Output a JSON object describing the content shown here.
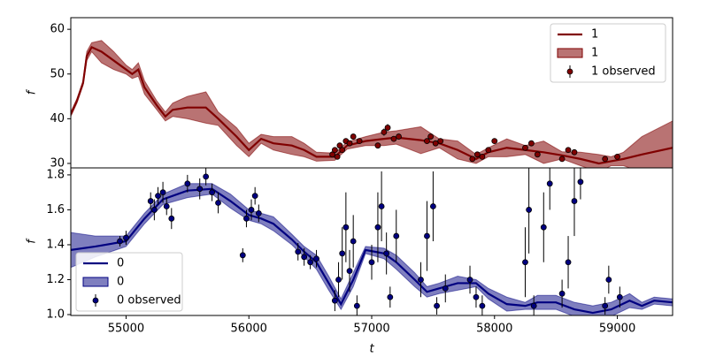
{
  "chart_data": [
    {
      "type": "line",
      "ylabel": "f",
      "legend": "upper right",
      "xlim": [
        54550,
        59450
      ],
      "ylim": [
        29,
        62.6
      ],
      "yticks": [
        30,
        40,
        50,
        60
      ],
      "series": [
        {
          "name": "1",
          "color": "#800000",
          "kind": "line",
          "x": [
            54550,
            54600,
            54650,
            54680,
            54720,
            54800,
            54900,
            55000,
            55050,
            55100,
            55150,
            55250,
            55320,
            55380,
            55500,
            55650,
            55750,
            55900,
            56000,
            56100,
            56200,
            56350,
            56450,
            56550,
            56700,
            56800,
            56950,
            57100,
            57200,
            57400,
            57550,
            57700,
            57850,
            57950,
            58100,
            58250,
            58400,
            58550,
            58700,
            58850,
            58950,
            59050,
            59200,
            59450
          ],
          "values": [
            41,
            44,
            48,
            54,
            56,
            55,
            53,
            51,
            50,
            51,
            47,
            43,
            40.5,
            42,
            42.5,
            42.5,
            40,
            36,
            33,
            35.5,
            34.5,
            34,
            33,
            31.5,
            31.5,
            34,
            35,
            35.5,
            35.8,
            35.2,
            34.5,
            33,
            31,
            32.5,
            33.5,
            33,
            32.5,
            31.8,
            31,
            30,
            30.5,
            31,
            32,
            33.5
          ]
        },
        {
          "name": "1",
          "color": "#800000",
          "kind": "band",
          "alpha": 0.55,
          "x": [
            54550,
            54600,
            54650,
            54680,
            54720,
            54800,
            54900,
            55000,
            55050,
            55100,
            55150,
            55250,
            55320,
            55380,
            55500,
            55650,
            55750,
            55900,
            56000,
            56100,
            56200,
            56350,
            56450,
            56550,
            56700,
            56800,
            56950,
            57100,
            57200,
            57400,
            57550,
            57700,
            57850,
            57950,
            58100,
            58250,
            58400,
            58550,
            58700,
            58850,
            58950,
            59050,
            59200,
            59450
          ],
          "lower": [
            40.5,
            43.5,
            47.5,
            53,
            55,
            52.5,
            51,
            50,
            49,
            49.5,
            45.5,
            42,
            39.5,
            40.5,
            40,
            39,
            38.5,
            34,
            31.5,
            34.5,
            33,
            32,
            31.5,
            30.5,
            30.7,
            33.2,
            34,
            34,
            34.3,
            32.2,
            33.5,
            31,
            30,
            31.5,
            31.5,
            32,
            30,
            31,
            29.5,
            28,
            29.5,
            29.5,
            28,
            27.5
          ],
          "upper": [
            41.5,
            44.5,
            48.5,
            55,
            57,
            57.5,
            55,
            52,
            51,
            52.5,
            48.5,
            44,
            41.5,
            43.5,
            45,
            46,
            41.5,
            38,
            34.5,
            36.5,
            36,
            36,
            34.5,
            32.5,
            32.3,
            34.8,
            36,
            37,
            37.3,
            38.2,
            35.5,
            35,
            32,
            33.5,
            35.5,
            34,
            35,
            32.6,
            32.5,
            32,
            31.5,
            32.5,
            36,
            39.5
          ]
        },
        {
          "name": "1 observed",
          "color": "#800000",
          "kind": "errorbar",
          "x": [
            56680,
            56700,
            56720,
            56740,
            56760,
            56790,
            56820,
            56850,
            56900,
            57050,
            57100,
            57130,
            57180,
            57220,
            57450,
            57480,
            57520,
            57560,
            57820,
            57860,
            57900,
            57950,
            58000,
            58250,
            58300,
            58350,
            58550,
            58600,
            58650,
            58900,
            59000
          ],
          "values": [
            32,
            33,
            31.5,
            34,
            33,
            35,
            34.5,
            36,
            35,
            34,
            37,
            38,
            35.5,
            36,
            35,
            36,
            34.5,
            35,
            31,
            32,
            31.5,
            33,
            35,
            33.5,
            34.5,
            32,
            31,
            33,
            32.5,
            31,
            31.5
          ],
          "errors": [
            0.6,
            0.6,
            0.6,
            0.6,
            0.6,
            0.6,
            0.6,
            0.6,
            0.6,
            0.6,
            0.8,
            0.8,
            0.6,
            0.6,
            0.6,
            0.6,
            0.6,
            0.6,
            0.6,
            0.6,
            0.6,
            0.6,
            0.6,
            0.6,
            0.6,
            0.6,
            0.6,
            0.6,
            0.6,
            0.6,
            0.6
          ]
        }
      ]
    },
    {
      "type": "line",
      "ylabel": "f",
      "xlabel": "t",
      "legend": "lower left",
      "xlim": [
        54550,
        59450
      ],
      "xticks": [
        55000,
        56000,
        57000,
        58000,
        59000
      ],
      "ylim": [
        0.995,
        1.84
      ],
      "yticks": [
        {
          "value": 1,
          "label": "1.0"
        },
        1.2,
        1.4,
        1.6,
        1.8
      ],
      "series": [
        {
          "name": "0",
          "color": "#000080",
          "kind": "line",
          "x": [
            54550,
            54750,
            55000,
            55150,
            55300,
            55500,
            55700,
            55850,
            56000,
            56100,
            56200,
            56350,
            56450,
            56550,
            56650,
            56750,
            56850,
            56950,
            57100,
            57200,
            57350,
            57450,
            57550,
            57700,
            57850,
            57950,
            58100,
            58250,
            58350,
            58500,
            58650,
            58800,
            58950,
            59100,
            59200,
            59300,
            59450
          ],
          "values": [
            1.37,
            1.39,
            1.42,
            1.55,
            1.66,
            1.71,
            1.72,
            1.65,
            1.57,
            1.55,
            1.52,
            1.43,
            1.36,
            1.3,
            1.18,
            1.06,
            1.2,
            1.37,
            1.35,
            1.3,
            1.2,
            1.13,
            1.15,
            1.18,
            1.18,
            1.12,
            1.06,
            1.05,
            1.07,
            1.07,
            1.03,
            1.01,
            1.03,
            1.08,
            1.05,
            1.08,
            1.07
          ]
        },
        {
          "name": "0",
          "color": "#000080",
          "kind": "band",
          "alpha": 0.5,
          "x": [
            54550,
            54750,
            55000,
            55150,
            55300,
            55500,
            55700,
            55850,
            56000,
            56100,
            56200,
            56350,
            56450,
            56550,
            56650,
            56750,
            56850,
            56950,
            57100,
            57200,
            57350,
            57450,
            57550,
            57700,
            57850,
            57950,
            58100,
            58250,
            58350,
            58500,
            58650,
            58800,
            58950,
            59100,
            59200,
            59300,
            59450
          ],
          "lower": [
            1.27,
            1.33,
            1.39,
            1.52,
            1.63,
            1.67,
            1.69,
            1.61,
            1.54,
            1.52,
            1.48,
            1.4,
            1.33,
            1.26,
            1.14,
            1.03,
            1.16,
            1.35,
            1.32,
            1.26,
            1.16,
            1.1,
            1.12,
            1.14,
            1.16,
            1.09,
            1.02,
            1.03,
            1.03,
            1.03,
            0.99,
            0.97,
            0.99,
            1.04,
            1.03,
            1.06,
            1.05
          ],
          "upper": [
            1.47,
            1.45,
            1.45,
            1.58,
            1.69,
            1.75,
            1.75,
            1.69,
            1.6,
            1.58,
            1.56,
            1.46,
            1.39,
            1.34,
            1.22,
            1.09,
            1.24,
            1.39,
            1.38,
            1.34,
            1.24,
            1.16,
            1.18,
            1.22,
            1.2,
            1.15,
            1.1,
            1.07,
            1.11,
            1.11,
            1.07,
            1.05,
            1.07,
            1.12,
            1.07,
            1.1,
            1.09
          ]
        },
        {
          "name": "0 observed",
          "color": "#000080",
          "kind": "errorbar",
          "x": [
            54950,
            55000,
            55200,
            55230,
            55260,
            55300,
            55330,
            55370,
            55500,
            55600,
            55650,
            55700,
            55750,
            55950,
            55980,
            56020,
            56050,
            56080,
            56400,
            56450,
            56500,
            56550,
            56700,
            56730,
            56760,
            56790,
            56820,
            56850,
            56880,
            57000,
            57050,
            57080,
            57120,
            57150,
            57200,
            57400,
            57450,
            57500,
            57530,
            57600,
            57800,
            57850,
            57900,
            58250,
            58280,
            58320,
            58400,
            58450,
            58550,
            58600,
            58650,
            58700,
            58900,
            58930,
            59020
          ],
          "values": [
            1.42,
            1.44,
            1.65,
            1.6,
            1.68,
            1.7,
            1.62,
            1.55,
            1.75,
            1.72,
            1.79,
            1.7,
            1.64,
            1.34,
            1.55,
            1.6,
            1.68,
            1.58,
            1.36,
            1.33,
            1.3,
            1.32,
            1.08,
            1.2,
            1.35,
            1.5,
            1.25,
            1.42,
            1.05,
            1.3,
            1.5,
            1.62,
            1.35,
            1.1,
            1.45,
            1.2,
            1.45,
            1.62,
            1.05,
            1.15,
            1.2,
            1.1,
            1.05,
            1.3,
            1.6,
            1.05,
            1.5,
            1.75,
            1.12,
            1.3,
            1.65,
            1.76,
            1.05,
            1.2,
            1.1
          ],
          "errors": [
            0.03,
            0.04,
            0.05,
            0.06,
            0.05,
            0.06,
            0.05,
            0.06,
            0.05,
            0.06,
            0.05,
            0.05,
            0.06,
            0.04,
            0.05,
            0.06,
            0.05,
            0.05,
            0.05,
            0.05,
            0.04,
            0.05,
            0.06,
            0.1,
            0.15,
            0.2,
            0.12,
            0.15,
            0.06,
            0.1,
            0.2,
            0.2,
            0.12,
            0.06,
            0.15,
            0.1,
            0.2,
            0.2,
            0.05,
            0.08,
            0.08,
            0.06,
            0.06,
            0.2,
            0.25,
            0.06,
            0.2,
            0.15,
            0.08,
            0.15,
            0.2,
            0.1,
            0.05,
            0.08,
            0.06
          ]
        }
      ]
    }
  ]
}
